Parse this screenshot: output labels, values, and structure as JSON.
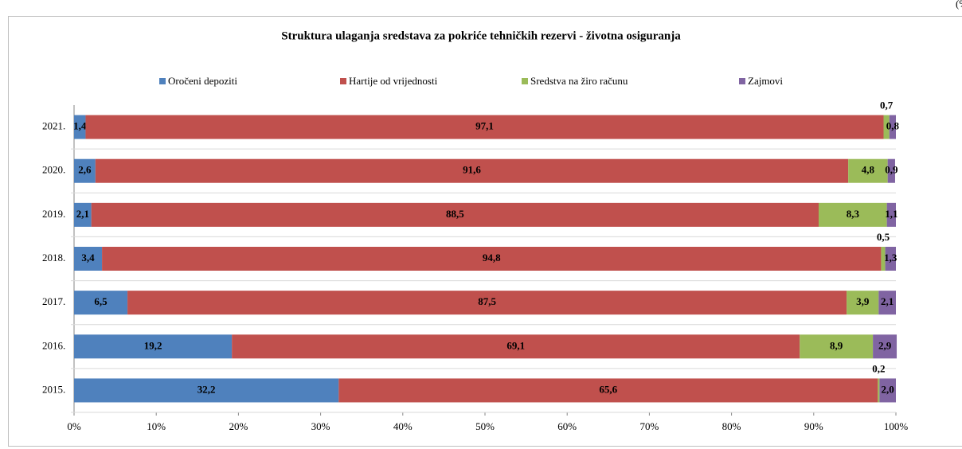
{
  "chart_data": {
    "type": "stacked_barh",
    "title": "Struktura  ulaganja sredstava za pokriće tehničkih  rezervi - životna osiguranja",
    "unit_note": "(%",
    "categories": [
      "2021.",
      "2020.",
      "2019.",
      "2018.",
      "2017.",
      "2016.",
      "2015."
    ],
    "series": [
      {
        "name": "Oročeni depoziti",
        "color": "#4f81bd",
        "values": [
          1.4,
          2.6,
          2.1,
          3.4,
          6.5,
          19.2,
          32.2
        ],
        "value_labels": [
          "1,4",
          "2,6",
          "2,1",
          "3,4",
          "6,5",
          "19,2",
          "32,2"
        ]
      },
      {
        "name": "Hartije od vrijednosti",
        "color": "#c0504d",
        "values": [
          97.1,
          91.6,
          88.5,
          94.8,
          87.5,
          69.1,
          65.6
        ],
        "value_labels": [
          "97,1",
          "91,6",
          "88,5",
          "94,8",
          "87,5",
          "69,1",
          "65,6"
        ]
      },
      {
        "name": "Sredstva na žiro računu",
        "color": "#9bbb59",
        "values": [
          0.7,
          4.8,
          8.3,
          0.5,
          3.9,
          8.9,
          0.2
        ],
        "value_labels": [
          "0,7",
          "4,8",
          "8,3",
          "0,5",
          "3,9",
          "8,9",
          "0,2"
        ]
      },
      {
        "name": "Zajmovi",
        "color": "#8064a2",
        "values": [
          0.8,
          0.9,
          1.1,
          1.3,
          2.1,
          2.9,
          2.0
        ],
        "value_labels": [
          "0,8",
          "0,9",
          "1,1",
          "1,3",
          "2,1",
          "2,9",
          "2,0"
        ]
      }
    ],
    "xlim": [
      0,
      100
    ],
    "xticks": [
      {
        "value": 0,
        "label": "0%"
      },
      {
        "value": 10,
        "label": "10%"
      },
      {
        "value": 20,
        "label": "20%"
      },
      {
        "value": 30,
        "label": "30%"
      },
      {
        "value": 40,
        "label": "40%"
      },
      {
        "value": 50,
        "label": "50%"
      },
      {
        "value": 60,
        "label": "60%"
      },
      {
        "value": 70,
        "label": "70%"
      },
      {
        "value": 80,
        "label": "80%"
      },
      {
        "value": 90,
        "label": "90%"
      },
      {
        "value": 100,
        "label": "100%"
      }
    ],
    "legend": "top"
  }
}
